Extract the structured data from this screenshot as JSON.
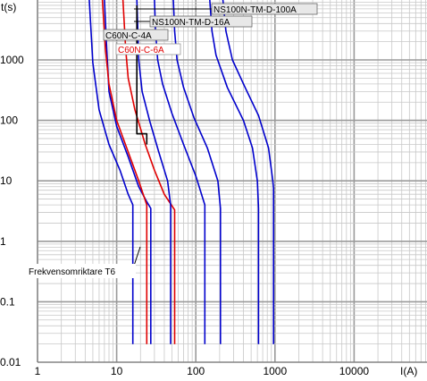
{
  "chart_data": {
    "type": "line",
    "title": "",
    "xlabel": "I(A)",
    "ylabel": "t(s)",
    "x_scale": "log",
    "y_scale": "log",
    "xlim": [
      1,
      100000
    ],
    "ylim": [
      0.01,
      10000
    ],
    "grid": true,
    "x_ticks": [
      {
        "value": 1,
        "label": "1"
      },
      {
        "value": 10,
        "label": "10"
      },
      {
        "value": 100,
        "label": "100"
      },
      {
        "value": 1000,
        "label": "1000"
      },
      {
        "value": 10000,
        "label": "10000"
      }
    ],
    "y_ticks": [
      {
        "value": 0.01,
        "label": "0.01"
      },
      {
        "value": 0.1,
        "label": "0.1"
      },
      {
        "value": 1,
        "label": "1"
      },
      {
        "value": 10,
        "label": "10"
      },
      {
        "value": 100,
        "label": "100"
      },
      {
        "value": 1000,
        "label": "1000"
      }
    ],
    "colors": {
      "blue": "#0000cc",
      "red": "#e00000",
      "black": "#000000",
      "grid": "#b0b0b0",
      "label_box": "#e8e8e8"
    },
    "series": [
      {
        "name": "C60N-C-4A",
        "color": "#0000cc",
        "points": [
          [
            4.5,
            10000
          ],
          [
            5,
            900
          ],
          [
            6,
            150
          ],
          [
            8,
            40
          ],
          [
            11,
            15
          ],
          [
            14,
            6
          ],
          [
            16,
            4
          ],
          [
            16,
            0.02
          ]
        ]
      },
      {
        "name": "",
        "color": "#0000cc",
        "points": [
          [
            7,
            10000
          ],
          [
            7.5,
            1500
          ],
          [
            8,
            300
          ],
          [
            10,
            80
          ],
          [
            14,
            25
          ],
          [
            19,
            8
          ],
          [
            24,
            4.5
          ],
          [
            27,
            3.5
          ],
          [
            27,
            0.02
          ]
        ]
      },
      {
        "name": "C60N-C-6A",
        "color": "#e00000",
        "points": [
          [
            6.6,
            10000
          ],
          [
            7.2,
            1500
          ],
          [
            8,
            400
          ],
          [
            10,
            100
          ],
          [
            14,
            30
          ],
          [
            19,
            10
          ],
          [
            24,
            4
          ],
          [
            24,
            0.02
          ]
        ]
      },
      {
        "name": "",
        "color": "#e00000",
        "points": [
          [
            12,
            10000
          ],
          [
            13,
            1500
          ],
          [
            14,
            500
          ],
          [
            17,
            150
          ],
          [
            23,
            40
          ],
          [
            30,
            15
          ],
          [
            40,
            6
          ],
          [
            54,
            3.3
          ],
          [
            54,
            0.02
          ]
        ]
      },
      {
        "name": "",
        "color": "#0000cc",
        "points": [
          [
            18,
            10000
          ],
          [
            18.5,
            3000
          ],
          [
            19,
            1000
          ],
          [
            21,
            300
          ],
          [
            26,
            100
          ],
          [
            34,
            30
          ],
          [
            44,
            10
          ],
          [
            48,
            4
          ],
          [
            48,
            0.02
          ]
        ]
      },
      {
        "name": "NS100N-TM-D-16A",
        "color": "#0000cc",
        "points": [
          [
            30,
            10000
          ],
          [
            31,
            3000
          ],
          [
            33,
            1000
          ],
          [
            38,
            400
          ],
          [
            50,
            130
          ],
          [
            70,
            40
          ],
          [
            100,
            12
          ],
          [
            130,
            4
          ],
          [
            130,
            0.02
          ]
        ]
      },
      {
        "name": "",
        "color": "#0000cc",
        "points": [
          [
            52,
            10000
          ],
          [
            54,
            3000
          ],
          [
            58,
            1000
          ],
          [
            70,
            350
          ],
          [
            95,
            110
          ],
          [
            140,
            35
          ],
          [
            190,
            10
          ],
          [
            205,
            3.5
          ],
          [
            205,
            0.02
          ]
        ]
      },
      {
        "name": "NS100N-TM-D-100A",
        "color": "#0000cc",
        "points": [
          [
            150,
            10000
          ],
          [
            160,
            3000
          ],
          [
            180,
            1200
          ],
          [
            250,
            350
          ],
          [
            400,
            100
          ],
          [
            520,
            35
          ],
          [
            600,
            10
          ],
          [
            620,
            3.5
          ],
          [
            620,
            0.02
          ]
        ]
      },
      {
        "name": "",
        "color": "#0000cc",
        "points": [
          [
            220,
            10000
          ],
          [
            240,
            3000
          ],
          [
            290,
            1000
          ],
          [
            420,
            350
          ],
          [
            620,
            120
          ],
          [
            830,
            35
          ],
          [
            940,
            10
          ],
          [
            960,
            7.5
          ],
          [
            960,
            0.02
          ]
        ]
      },
      {
        "name": "Frekvensomriktare T6",
        "color": "#000000",
        "points": [
          [
            18,
            8000
          ],
          [
            18,
            60
          ],
          [
            24,
            60
          ],
          [
            24,
            40
          ]
        ]
      }
    ],
    "annotations": [
      {
        "text": "NS100N-TM-D-100A",
        "color": "#000000"
      },
      {
        "text": "NS100N-TM-D-16A",
        "color": "#000000"
      },
      {
        "text": "C60N-C-4A",
        "color": "#000000"
      },
      {
        "text": "C60N-C-6A",
        "color": "#e00000"
      },
      {
        "text": "Frekvensomriktare T6",
        "color": "#000000"
      }
    ]
  }
}
